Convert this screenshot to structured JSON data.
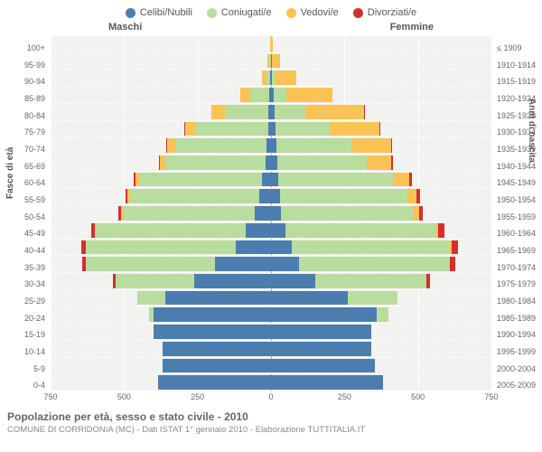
{
  "legend": [
    {
      "label": "Celibi/Nubili",
      "color": "#4b7daf"
    },
    {
      "label": "Coniugati/e",
      "color": "#b9dd9e"
    },
    {
      "label": "Vedovi/e",
      "color": "#fbc255"
    },
    {
      "label": "Divorziati/e",
      "color": "#d2302f"
    }
  ],
  "headers": {
    "male": "Maschi",
    "female": "Femmine"
  },
  "axis_titles": {
    "left": "Fasce di età",
    "right": "Anni di nascita"
  },
  "x_axis": {
    "max": 750,
    "ticks": [
      750,
      500,
      250,
      0,
      250,
      500,
      750
    ]
  },
  "footer": {
    "title": "Popolazione per età, sesso e stato civile - 2010",
    "subtitle": "COMUNE DI CORRIDONIA (MC) - Dati ISTAT 1° gennaio 2010 - Elaborazione TUTTITALIA.IT"
  },
  "rows": [
    {
      "age": "0-4",
      "birth": "2005-2009",
      "m": {
        "c": 385,
        "s": 0,
        "v": 0,
        "d": 0
      },
      "f": {
        "c": 380,
        "s": 0,
        "v": 0,
        "d": 0
      }
    },
    {
      "age": "5-9",
      "birth": "2000-2004",
      "m": {
        "c": 370,
        "s": 0,
        "v": 0,
        "d": 0
      },
      "f": {
        "c": 355,
        "s": 0,
        "v": 0,
        "d": 0
      }
    },
    {
      "age": "10-14",
      "birth": "1995-1999",
      "m": {
        "c": 370,
        "s": 0,
        "v": 0,
        "d": 0
      },
      "f": {
        "c": 340,
        "s": 0,
        "v": 0,
        "d": 0
      }
    },
    {
      "age": "15-19",
      "birth": "1990-1994",
      "m": {
        "c": 400,
        "s": 0,
        "v": 0,
        "d": 0
      },
      "f": {
        "c": 340,
        "s": 0,
        "v": 0,
        "d": 0
      }
    },
    {
      "age": "20-24",
      "birth": "1985-1989",
      "m": {
        "c": 400,
        "s": 15,
        "v": 0,
        "d": 0
      },
      "f": {
        "c": 360,
        "s": 40,
        "v": 0,
        "d": 0
      }
    },
    {
      "age": "25-29",
      "birth": "1980-1984",
      "m": {
        "c": 360,
        "s": 95,
        "v": 0,
        "d": 0
      },
      "f": {
        "c": 260,
        "s": 170,
        "v": 0,
        "d": 0
      }
    },
    {
      "age": "30-34",
      "birth": "1975-1979",
      "m": {
        "c": 260,
        "s": 270,
        "v": 0,
        "d": 8
      },
      "f": {
        "c": 150,
        "s": 380,
        "v": 0,
        "d": 12
      }
    },
    {
      "age": "35-39",
      "birth": "1970-1974",
      "m": {
        "c": 190,
        "s": 440,
        "v": 0,
        "d": 12
      },
      "f": {
        "c": 95,
        "s": 510,
        "v": 3,
        "d": 18
      }
    },
    {
      "age": "40-44",
      "birth": "1965-1969",
      "m": {
        "c": 120,
        "s": 510,
        "v": 0,
        "d": 15
      },
      "f": {
        "c": 70,
        "s": 540,
        "v": 5,
        "d": 20
      }
    },
    {
      "age": "45-49",
      "birth": "1960-1964",
      "m": {
        "c": 85,
        "s": 510,
        "v": 3,
        "d": 15
      },
      "f": {
        "c": 50,
        "s": 510,
        "v": 8,
        "d": 22
      }
    },
    {
      "age": "50-54",
      "birth": "1955-1959",
      "m": {
        "c": 55,
        "s": 450,
        "v": 5,
        "d": 10
      },
      "f": {
        "c": 35,
        "s": 450,
        "v": 18,
        "d": 15
      }
    },
    {
      "age": "55-59",
      "birth": "1950-1954",
      "m": {
        "c": 40,
        "s": 440,
        "v": 8,
        "d": 8
      },
      "f": {
        "c": 30,
        "s": 435,
        "v": 30,
        "d": 12
      }
    },
    {
      "age": "60-64",
      "birth": "1945-1949",
      "m": {
        "c": 30,
        "s": 420,
        "v": 12,
        "d": 6
      },
      "f": {
        "c": 25,
        "s": 390,
        "v": 55,
        "d": 10
      }
    },
    {
      "age": "65-69",
      "birth": "1940-1944",
      "m": {
        "c": 20,
        "s": 340,
        "v": 18,
        "d": 4
      },
      "f": {
        "c": 20,
        "s": 305,
        "v": 85,
        "d": 5
      }
    },
    {
      "age": "70-74",
      "birth": "1935-1939",
      "m": {
        "c": 15,
        "s": 310,
        "v": 28,
        "d": 3
      },
      "f": {
        "c": 18,
        "s": 255,
        "v": 135,
        "d": 4
      }
    },
    {
      "age": "75-79",
      "birth": "1930-1934",
      "m": {
        "c": 10,
        "s": 245,
        "v": 38,
        "d": 2
      },
      "f": {
        "c": 15,
        "s": 185,
        "v": 170,
        "d": 3
      }
    },
    {
      "age": "80-84",
      "birth": "1925-1929",
      "m": {
        "c": 8,
        "s": 150,
        "v": 45,
        "d": 0
      },
      "f": {
        "c": 12,
        "s": 105,
        "v": 200,
        "d": 2
      }
    },
    {
      "age": "85-89",
      "birth": "1920-1924",
      "m": {
        "c": 5,
        "s": 65,
        "v": 35,
        "d": 0
      },
      "f": {
        "c": 8,
        "s": 45,
        "v": 155,
        "d": 0
      }
    },
    {
      "age": "90-94",
      "birth": "1915-1919",
      "m": {
        "c": 2,
        "s": 12,
        "v": 16,
        "d": 0
      },
      "f": {
        "c": 4,
        "s": 10,
        "v": 72,
        "d": 0
      }
    },
    {
      "age": "95-99",
      "birth": "1910-1914",
      "m": {
        "c": 1,
        "s": 3,
        "v": 8,
        "d": 0
      },
      "f": {
        "c": 2,
        "s": 2,
        "v": 28,
        "d": 0
      }
    },
    {
      "age": "100+",
      "birth": "≤ 1909",
      "m": {
        "c": 0,
        "s": 0,
        "v": 2,
        "d": 0
      },
      "f": {
        "c": 1,
        "s": 0,
        "v": 6,
        "d": 0
      }
    }
  ]
}
